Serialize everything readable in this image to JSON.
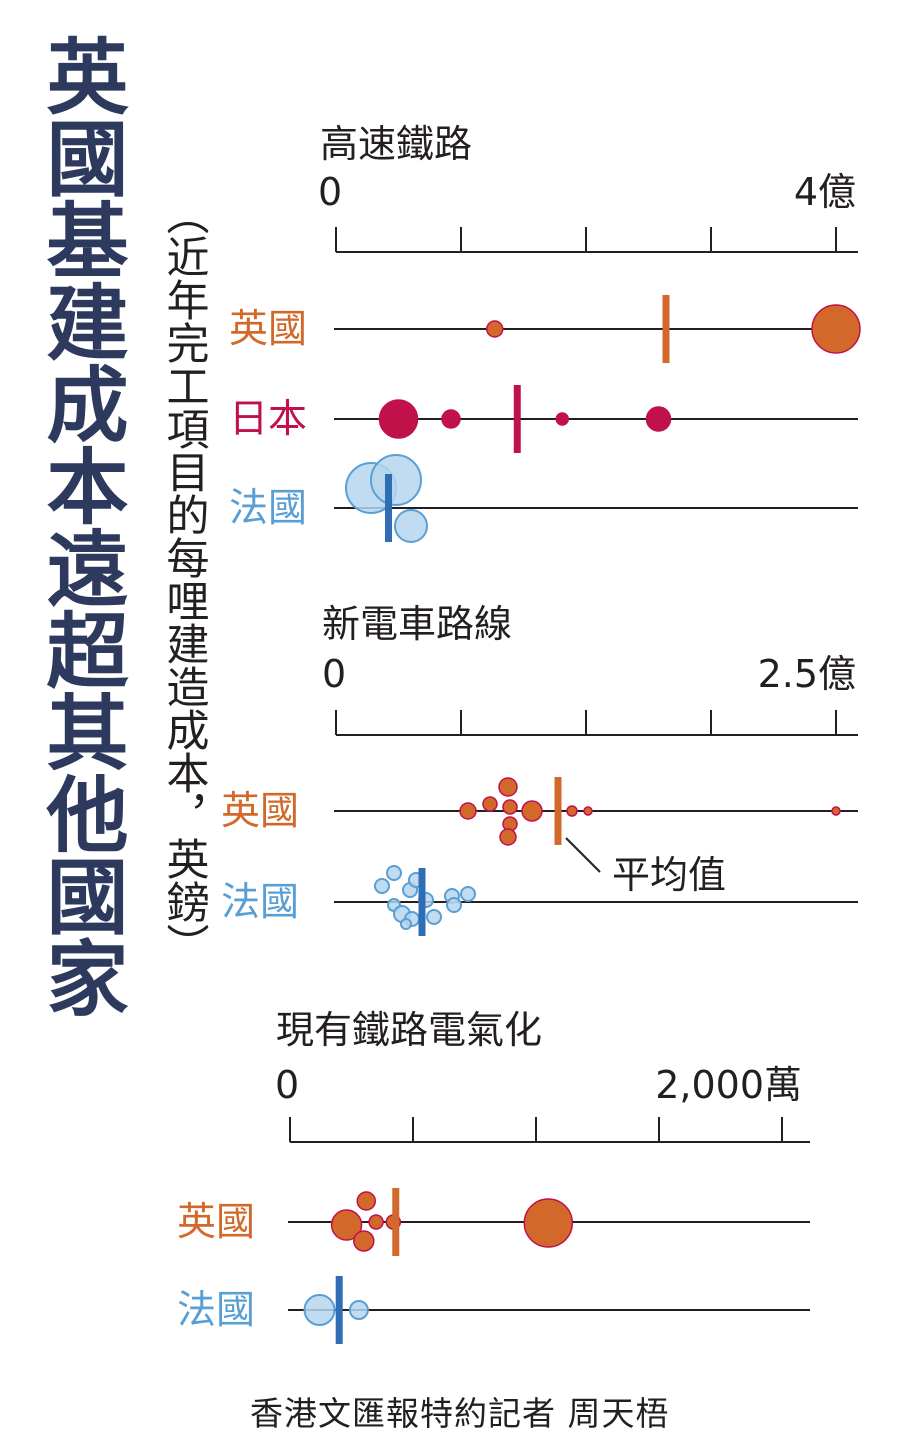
{
  "title": "英國基建成本遠超其他國家",
  "subtitle": "（近年完工項目的每哩建造成本，英鎊）",
  "credit": "香港文匯報特約記者 周天梧",
  "colors": {
    "title": "#2d3a5e",
    "uk": "#d2692a",
    "japan": "#c0114a",
    "france": "#5a9fd4",
    "france_mean": "#2f6db5"
  },
  "mean_label": "平均值",
  "chart_data": [
    {
      "type": "scatter",
      "title": "高速鐵路",
      "axis_min_label": "0",
      "axis_max_label": "4億",
      "xlim": [
        0,
        400000000
      ],
      "series": [
        {
          "name": "英國",
          "color_key": "uk",
          "mean": 264000000,
          "points": [
            {
              "x": 127000000,
              "r": 8
            },
            {
              "x": 400000000,
              "r": 24
            }
          ]
        },
        {
          "name": "日本",
          "color_key": "japan",
          "mean": 145000000,
          "points": [
            {
              "x": 50000000,
              "r": 19
            },
            {
              "x": 92000000,
              "r": 9
            },
            {
              "x": 181000000,
              "r": 6
            },
            {
              "x": 258000000,
              "r": 12
            }
          ]
        },
        {
          "name": "法國",
          "color_key": "france",
          "mean": 42000000,
          "points": [
            {
              "x": 28000000,
              "r": 25
            },
            {
              "x": 60000000,
              "r": 16
            },
            {
              "x": 48000000,
              "r": 25
            }
          ]
        }
      ]
    },
    {
      "type": "scatter",
      "title": "新電車路線",
      "axis_min_label": "0",
      "axis_max_label": "2.5億",
      "xlim": [
        0,
        250000000
      ],
      "series": [
        {
          "name": "英國",
          "color_key": "uk",
          "mean": 111000000,
          "points": [
            {
              "x": 66000000,
              "r": 8
            },
            {
              "x": 77000000,
              "r": 7
            },
            {
              "x": 86000000,
              "r": 9
            },
            {
              "x": 87000000,
              "r": 7
            },
            {
              "x": 87000000,
              "r": 7
            },
            {
              "x": 86000000,
              "r": 8
            },
            {
              "x": 98000000,
              "r": 10
            },
            {
              "x": 118000000,
              "r": 5
            },
            {
              "x": 126000000,
              "r": 4
            },
            {
              "x": 250000000,
              "r": 4
            }
          ]
        },
        {
          "name": "法國",
          "color_key": "france",
          "mean": 43000000,
          "points": [
            {
              "x": 23000000,
              "r": 7
            },
            {
              "x": 29000000,
              "r": 7
            },
            {
              "x": 29000000,
              "r": 6
            },
            {
              "x": 33000000,
              "r": 8
            },
            {
              "x": 37000000,
              "r": 7
            },
            {
              "x": 38000000,
              "r": 7
            },
            {
              "x": 40000000,
              "r": 7
            },
            {
              "x": 45000000,
              "r": 7
            },
            {
              "x": 49000000,
              "r": 7
            },
            {
              "x": 58000000,
              "r": 7
            },
            {
              "x": 59000000,
              "r": 7
            },
            {
              "x": 66000000,
              "r": 7
            },
            {
              "x": 35000000,
              "r": 5
            }
          ]
        }
      ]
    },
    {
      "type": "scatter",
      "title": "現有鐵路電氣化",
      "axis_min_label": "0",
      "axis_max_label": "2,000萬",
      "xlim": [
        0,
        20000000
      ],
      "series": [
        {
          "name": "英國",
          "color_key": "uk",
          "mean": 4300000,
          "points": [
            {
              "x": 2300000,
              "r": 15
            },
            {
              "x": 3100000,
              "r": 9
            },
            {
              "x": 3000000,
              "r": 10
            },
            {
              "x": 3500000,
              "r": 7
            },
            {
              "x": 4200000,
              "r": 7
            },
            {
              "x": 10500000,
              "r": 24
            }
          ]
        },
        {
          "name": "法國",
          "color_key": "france",
          "mean": 2000000,
          "points": [
            {
              "x": 1200000,
              "r": 15
            },
            {
              "x": 2800000,
              "r": 9
            }
          ]
        }
      ]
    }
  ]
}
